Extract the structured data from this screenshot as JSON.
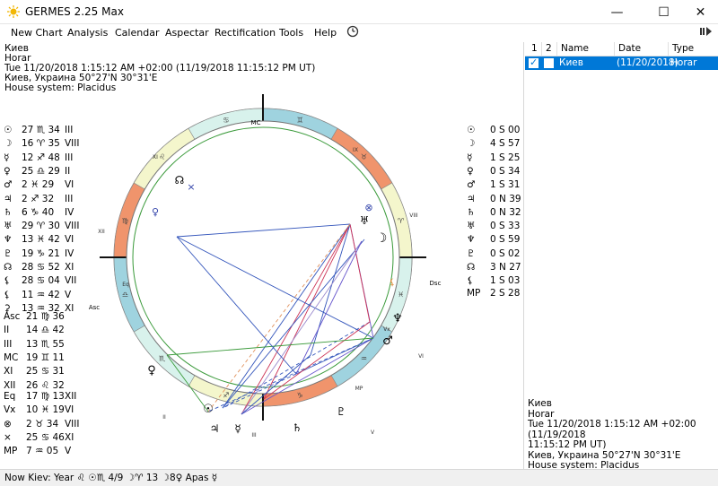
{
  "window": {
    "title": "GERMES 2.25 Max",
    "minimize": "—",
    "maximize": "☐",
    "close": "✕"
  },
  "menu": {
    "items": [
      "New Chart",
      "Analysis",
      "Calendar",
      "Aspectar",
      "Rectification",
      "Tools",
      "Help"
    ],
    "clock_icon": "clock-icon",
    "right_icon": "expand-panel-icon"
  },
  "chart_header": {
    "lines": [
      "Киев",
      "Horar",
      "Tue 11/20/2018 1:15:12 AM +02:00 (11/19/2018 11:15:12 PM UT)",
      "Киев, Украина 50°27'N 30°31'E",
      "House system: Placidus"
    ]
  },
  "planets": [
    {
      "glyph": "☉",
      "pos": "27 ♏ 34",
      "house": "III"
    },
    {
      "glyph": "☽",
      "pos": "16 ♈ 35",
      "house": "VIII"
    },
    {
      "glyph": "☿",
      "pos": "12 ♐ 48",
      "house": "III"
    },
    {
      "glyph": "♀",
      "pos": "25 ♎ 29",
      "house": "II"
    },
    {
      "glyph": "♂",
      "pos": "2 ♓ 29",
      "house": "VI"
    },
    {
      "glyph": "♃",
      "pos": "2 ♐ 32",
      "house": "III"
    },
    {
      "glyph": "♄",
      "pos": "6 ♑ 40",
      "house": "IV"
    },
    {
      "glyph": "♅",
      "pos": "29 ♈ 30",
      "house": "VIII"
    },
    {
      "glyph": "♆",
      "pos": "13 ♓ 42",
      "house": "VI"
    },
    {
      "glyph": "♇",
      "pos": "19 ♑ 21",
      "house": "IV"
    },
    {
      "glyph": "☊",
      "pos": "28 ♋ 52",
      "house": "XI"
    },
    {
      "glyph": "⚸",
      "pos": "28 ♋ 04",
      "house": "VII"
    },
    {
      "glyph": "⚸",
      "pos": "11 ♒ 42",
      "house": "V"
    },
    {
      "glyph": "⚳",
      "pos": "13 ♒ 32",
      "house": "XI"
    }
  ],
  "houses": [
    {
      "label": "Asc",
      "pos": "21 ♍ 36"
    },
    {
      "label": "II",
      "pos": "14 ♎ 42"
    },
    {
      "label": "III",
      "pos": "13 ♏ 55"
    },
    {
      "label": "MC",
      "pos": "19 ♊ 11"
    },
    {
      "label": "XI",
      "pos": "25 ♋ 31"
    },
    {
      "label": "XII",
      "pos": "26 ♌ 32"
    }
  ],
  "points": [
    {
      "label": "Eq",
      "pos": "17 ♍ 13",
      "house": "XII"
    },
    {
      "label": "Vx",
      "pos": "10 ♓ 19",
      "house": "VI"
    },
    {
      "label": "⊗",
      "pos": "2 ♉ 34",
      "house": "VIII"
    },
    {
      "label": "×",
      "pos": "25 ♋ 46",
      "house": "XI"
    },
    {
      "label": "MP",
      "pos": "7 ♒ 05",
      "house": "V"
    }
  ],
  "declinations": [
    {
      "glyph": "☉",
      "value": "0 S 00"
    },
    {
      "glyph": "☽",
      "value": "4 S 57"
    },
    {
      "glyph": "☿",
      "value": "1 S 25"
    },
    {
      "glyph": "♀",
      "value": "0 S 34"
    },
    {
      "glyph": "♂",
      "value": "1 S 31"
    },
    {
      "glyph": "♃",
      "value": "0 N 39"
    },
    {
      "glyph": "♄",
      "value": "0 N 32"
    },
    {
      "glyph": "♅",
      "value": "0 S 33"
    },
    {
      "glyph": "♆",
      "value": "0 S 59"
    },
    {
      "glyph": "♇",
      "value": "0 S 02"
    },
    {
      "glyph": "☊",
      "value": "3 N 27"
    },
    {
      "glyph": "⚸",
      "value": "1 S 03"
    }
  ],
  "mp_decl": {
    "label": "MP",
    "value": "2 S 28"
  },
  "wheel": {
    "angles": {
      "asc": "Asc",
      "dsc": "Dsc",
      "mc": "MC",
      "ic": "IC"
    },
    "house_numbers": [
      "XI",
      "IX",
      "VIII",
      "XII",
      "VI",
      "II",
      "III",
      "V"
    ],
    "markers": {
      "eq": "Eq",
      "vx": "Vx",
      "mp": "MP"
    },
    "colors": {
      "fire": "#f0946c",
      "earth": "#f4f6cc",
      "air": "#d8f2ec",
      "water": "#9fd3df",
      "inner": "#3a9a3a"
    }
  },
  "grid": {
    "headers": [
      "1",
      "2",
      "Name",
      "Date",
      "Type"
    ],
    "rows": [
      {
        "name": "Киев",
        "date": "(11/20/2018)",
        "type": "Horar",
        "c1": true,
        "c2": false
      }
    ]
  },
  "info": {
    "lines": [
      "Киев",
      "Horar",
      "Tue 11/20/2018 1:15:12 AM +02:00 (11/19/2018",
      "11:15:12 PM UT)",
      "Киев, Украина 50°27'N 30°31'E",
      "House system: Placidus"
    ]
  },
  "status": {
    "text": "Now Kiev:  Year ♌  ☉♏ 4/9  ☽♈ 13  ☽8♀  Apas  ☿"
  }
}
